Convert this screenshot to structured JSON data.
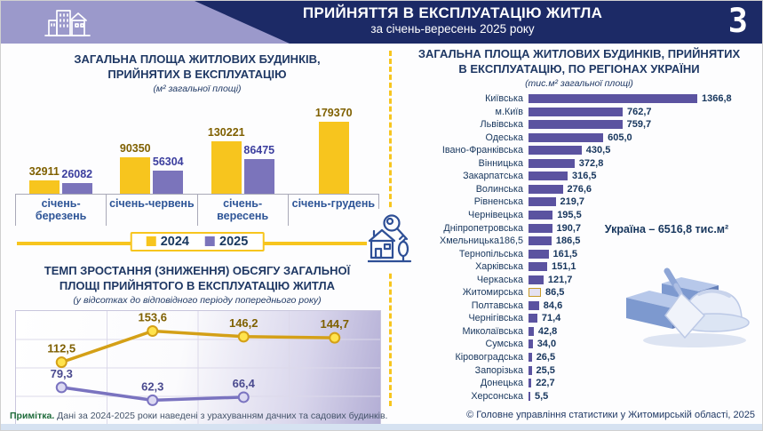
{
  "header": {
    "title": "ПРИЙНЯТТЯ В ЕКСПЛУАТАЦІЮ ЖИТЛА",
    "subtitle": "за січень-вересень 2025 року",
    "page_number": "3"
  },
  "colors": {
    "header_navy": "#1c2a66",
    "header_shape_purple": "#9b99cb",
    "accent_yellow": "#F7C51E",
    "bar_yellow": "#F7C51E",
    "bar_purple": "#7b74bb",
    "region_bar_purple": "#5b53a0",
    "region_bar_highlight_fill": "#e4e1f2",
    "region_bar_highlight_border": "#c89b28",
    "title_navy": "#1F3864",
    "axis_label_blue": "#2E5597",
    "yellow_value_label": "#7F6000",
    "purple_value_label": "#3b3e9e",
    "line_yellow": "#d4a017",
    "line_purple": "#7a73c0"
  },
  "chart_data": [
    {
      "id": "total-area-bar-chart",
      "type": "bar",
      "title_lines": [
        "ЗАГАЛЬНА ПЛОЩА ЖИТЛОВИХ БУДИНКІВ,",
        "ПРИЙНЯТИХ В ЕКСПЛУАТАЦІЮ"
      ],
      "subtitle": "(м² загальної площі)",
      "categories": [
        "січень-березень",
        "січень-червень",
        "січень-вересень",
        "січень-грудень"
      ],
      "series": [
        {
          "name": "2024",
          "color": "#F7C51E",
          "label_color": "#7F6000",
          "values": [
            32911,
            90350,
            130221,
            179370
          ],
          "labels": [
            "32911",
            "90350",
            "130221",
            "179370"
          ]
        },
        {
          "name": "2025",
          "color": "#7b74bb",
          "label_color": "#3b3e9e",
          "values": [
            26082,
            56304,
            86475,
            null
          ],
          "labels": [
            "26082",
            "56304",
            "86475",
            null
          ]
        }
      ],
      "ylim": [
        0,
        190000
      ],
      "legend_position": "bottom"
    },
    {
      "id": "growth-rate-line-chart",
      "type": "line",
      "title_lines": [
        "ТЕМП ЗРОСТАННЯ (ЗНИЖЕННЯ) ОБСЯГУ ЗАГАЛЬНОЇ",
        "ПЛОЩІ ПРИЙНЯТОГО В ЕКСПЛУАТАЦІЮ ЖИТЛА"
      ],
      "subtitle": "(у відсотках до відповідного періоду попереднього року)",
      "categories": [
        "січень-березень",
        "січень-червень",
        "січень-вересень",
        "січень-грудень"
      ],
      "series": [
        {
          "name": "2024",
          "color": "#d4a017",
          "marker_fill": "#ffe34d",
          "label_color": "#7F6000",
          "values": [
            112.5,
            153.6,
            146.2,
            144.7
          ],
          "labels": [
            "112,5",
            "153,6",
            "146,2",
            "144,7"
          ]
        },
        {
          "name": "2025",
          "color": "#7a73c0",
          "marker_fill": "#dcd9f2",
          "label_color": "#4a4a8f",
          "values": [
            79.3,
            62.3,
            66.4
          ],
          "labels": [
            "79,3",
            "62,3",
            "66,4"
          ]
        }
      ],
      "ylim": [
        30,
        180
      ],
      "grid": true
    },
    {
      "id": "regions-bar-chart",
      "type": "bar",
      "orientation": "horizontal",
      "title_lines": [
        "ЗАГАЛЬНА ПЛОЩА ЖИТЛОВИХ БУДИНКІВ, ПРИЙНЯТИХ",
        "В ЕКСПЛУАТАЦІЮ, ПО РЕГІОНАХ УКРАЇНИ"
      ],
      "subtitle": "(тис.м² загальної площі)",
      "xlim": [
        0,
        1400
      ],
      "annotation": "Україна – 6516,8 тис.м²",
      "regions": [
        {
          "name": "Київська",
          "value": 1366.8,
          "label": "1366,8"
        },
        {
          "name": "м.Київ",
          "value": 762.7,
          "label": "762,7"
        },
        {
          "name": "Львівська",
          "value": 759.7,
          "label": "759,7"
        },
        {
          "name": "Одеська",
          "value": 605.0,
          "label": "605,0"
        },
        {
          "name": "Івано-Франківська",
          "value": 430.5,
          "label": "430,5"
        },
        {
          "name": "Вінницька",
          "value": 372.8,
          "label": "372,8"
        },
        {
          "name": "Закарпатська",
          "value": 316.5,
          "label": "316,5"
        },
        {
          "name": "Волинська",
          "value": 276.6,
          "label": "276,6"
        },
        {
          "name": "Рівненська",
          "value": 219.7,
          "label": "219,7"
        },
        {
          "name": "Чернівецька",
          "value": 195.5,
          "label": "195,5"
        },
        {
          "name": "Дніпропетровська",
          "value": 190.7,
          "label": "190,7"
        },
        {
          "name": "Хмельницька186,5",
          "value": 186.5,
          "label": "186,5"
        },
        {
          "name": "Тернопільська",
          "value": 161.5,
          "label": "161,5"
        },
        {
          "name": "Харківська",
          "value": 151.1,
          "label": "151,1"
        },
        {
          "name": "Черкаська",
          "value": 121.7,
          "label": "121,7"
        },
        {
          "name": "Житомирська",
          "value": 86.5,
          "label": "86,5",
          "highlight": true
        },
        {
          "name": "Полтавська",
          "value": 84.6,
          "label": "84,6"
        },
        {
          "name": "Чернігівська",
          "value": 71.4,
          "label": "71,4"
        },
        {
          "name": "Миколаївська",
          "value": 42.8,
          "label": "42,8"
        },
        {
          "name": "Сумська",
          "value": 34.0,
          "label": "34,0"
        },
        {
          "name": "Кіровоградська",
          "value": 26.5,
          "label": "26,5"
        },
        {
          "name": "Запорізька",
          "value": 25.5,
          "label": "25,5"
        },
        {
          "name": "Донецька",
          "value": 22.7,
          "label": "22,7"
        },
        {
          "name": "Херсонська",
          "value": 5.5,
          "label": "5,5"
        }
      ]
    }
  ],
  "footnote": {
    "bold": "Примітка.",
    "text": " Дані за 2024-2025 роки наведені з урахуванням дачних та садових будинків."
  },
  "copyright": "© Головне управління статистики у Житомирській області, 2025"
}
